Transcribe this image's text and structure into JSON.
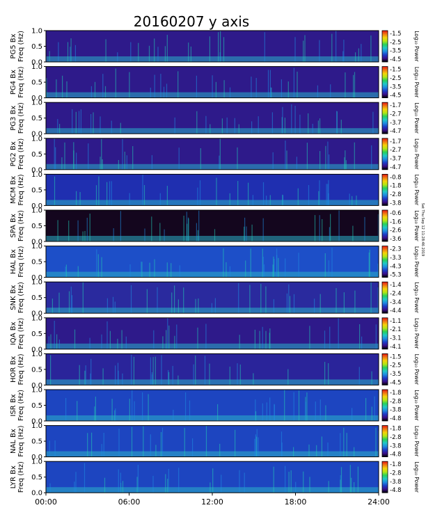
{
  "chart_data": {
    "type": "heatmap",
    "title": "20160207  y axis",
    "x_ticks": [
      "00:00",
      "06:00",
      "12:00",
      "18:00",
      "24:00"
    ],
    "x_range_hours": [
      0,
      24
    ],
    "y_ticks": [
      "1.0",
      "0.5",
      "0.0"
    ],
    "y_range_hz": [
      0,
      1.0
    ],
    "colorbar_label": "Log₁₀ Power",
    "footer_text": "Sat Thu Sep 12 11:28:46 2019",
    "panels": [
      {
        "station": "PG5",
        "ylabel": "PG5 Bx\nFreq (Hz)",
        "cbar_ticks": [
          "-1.5",
          "-2.5",
          "-3.5",
          "-4.5"
        ],
        "bg": "#2e1a8a"
      },
      {
        "station": "PG4",
        "ylabel": "PG4 Bx\nFreq (Hz)",
        "cbar_ticks": [
          "-1.5",
          "-2.5",
          "-3.5",
          "-4.5"
        ],
        "bg": "#2e1a8a"
      },
      {
        "station": "PG3",
        "ylabel": "PG3 Bx\nFreq (Hz)",
        "cbar_ticks": [
          "-1.7",
          "-2.7",
          "-3.7",
          "-4.7"
        ],
        "bg": "#2e1a8a"
      },
      {
        "station": "PG2",
        "ylabel": "PG2 Bx\nFreq (Hz)",
        "cbar_ticks": [
          "-1.7",
          "-2.7",
          "-3.7",
          "-4.7"
        ],
        "bg": "#2e1a8a"
      },
      {
        "station": "MCM",
        "ylabel": "MCM Bx\nFreq (Hz)",
        "cbar_ticks": [
          "-0.8",
          "-1.8",
          "-2.8",
          "-3.8"
        ],
        "bg": "#1f2fb0"
      },
      {
        "station": "SPA",
        "ylabel": "SPA Bx\nFreq (Hz)",
        "cbar_ticks": [
          "-0.6",
          "-1.6",
          "-2.6",
          "-3.6"
        ],
        "bg": "#14061e"
      },
      {
        "station": "HAL",
        "ylabel": "HAL Bx\nFreq (Hz)",
        "cbar_ticks": [
          "-2.3",
          "-3.3",
          "-4.3",
          "-5.3"
        ],
        "bg": "#1d4fc8"
      },
      {
        "station": "SNK",
        "ylabel": "SNK Bx\nFreq (Hz)",
        "cbar_ticks": [
          "-1.4",
          "-2.4",
          "-3.4",
          "-4.4"
        ],
        "bg": "#2a2a9e"
      },
      {
        "station": "IQA",
        "ylabel": "IQA Bx\nFreq (Hz)",
        "cbar_ticks": [
          "-1.1",
          "-2.1",
          "-3.1",
          "-4.1"
        ],
        "bg": "#2e1a8a"
      },
      {
        "station": "HOR",
        "ylabel": "HOR Bx\nFreq (Hz)",
        "cbar_ticks": [
          "-1.5",
          "-2.5",
          "-3.5",
          "-4.5"
        ],
        "bg": "#2a249a"
      },
      {
        "station": "ISR",
        "ylabel": "ISR Bx\nFreq (Hz)",
        "cbar_ticks": [
          "-1.8",
          "-2.8",
          "-3.8",
          "-4.8"
        ],
        "bg": "#1d45c0"
      },
      {
        "station": "NAL",
        "ylabel": "NAL Bx\nFreq (Hz)",
        "cbar_ticks": [
          "-1.8",
          "-2.8",
          "-3.8",
          "-4.8"
        ],
        "bg": "#1d45c0"
      },
      {
        "station": "LYR",
        "ylabel": "LYR Bx\nFreq (Hz)",
        "cbar_ticks": [
          "-1.8",
          "-2.8",
          "-3.8",
          "-4.8"
        ],
        "bg": "#1d45c0"
      }
    ],
    "colormap": [
      "#000000",
      "#3a0f8a",
      "#1e3cc8",
      "#1f8ce0",
      "#20c8c8",
      "#28d25a",
      "#b4e614",
      "#f5d20a",
      "#f07814",
      "#e61414"
    ]
  }
}
